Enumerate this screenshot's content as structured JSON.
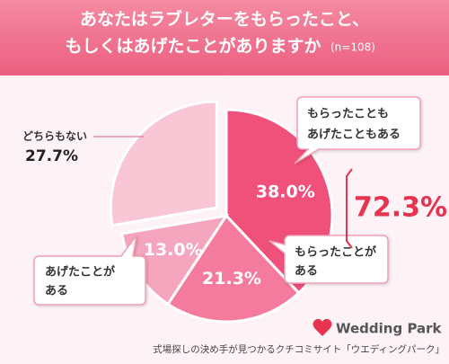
{
  "chart_data": {
    "type": "pie",
    "title": [
      "あなたはラブレターをもらったこと、",
      "もしくはあげたことがありますか"
    ],
    "subtitle": "(n=108)",
    "categories": [
      [
        "もらったことも",
        "あげたこともある"
      ],
      [
        "もらったことが",
        "ある"
      ],
      [
        "あげたことが",
        "ある"
      ],
      [
        "どちらもない"
      ]
    ],
    "values": [
      38.0,
      21.3,
      13.0,
      27.7
    ],
    "value_labels": [
      "38.0%",
      "21.3%",
      "13.0%",
      "27.7%"
    ],
    "colors": [
      "#f0517b",
      "#f47b9d",
      "#f6a5be",
      "#f9c6d6"
    ],
    "exploded": [
      false,
      false,
      false,
      true
    ],
    "annotation": {
      "value": 72.3,
      "label": "72.3%"
    }
  },
  "footer": {
    "brand": "Wedding Park",
    "tagline": "式場探しの決め手が見つかるクチコミサイト「ウエディングパーク」"
  }
}
